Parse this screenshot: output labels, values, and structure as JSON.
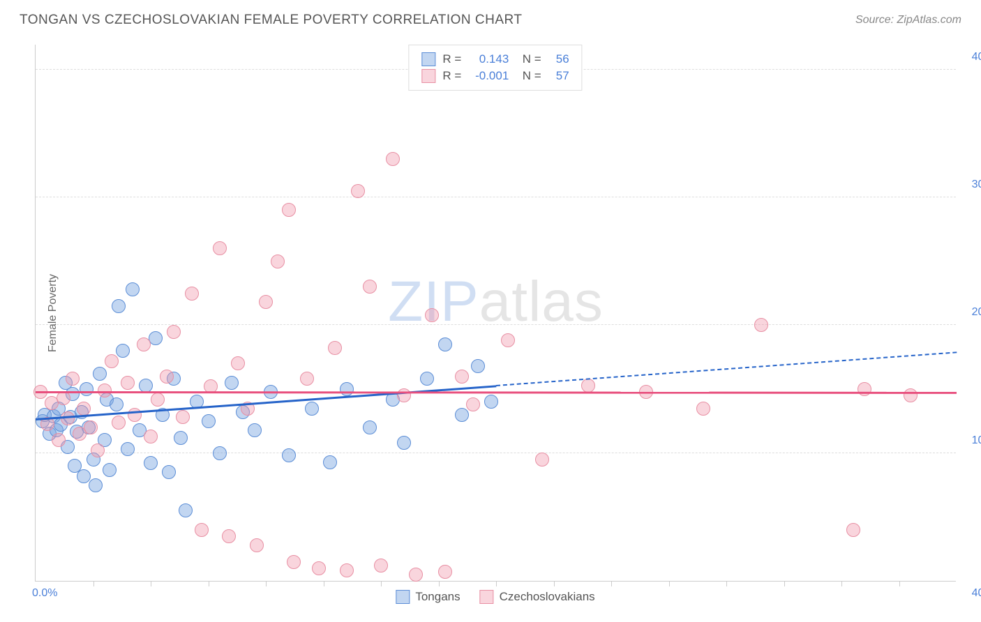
{
  "header": {
    "title": "TONGAN VS CZECHOSLOVAKIAN FEMALE POVERTY CORRELATION CHART",
    "source": "Source: ZipAtlas.com"
  },
  "chart": {
    "type": "scatter",
    "y_axis_label": "Female Poverty",
    "x_range": [
      0,
      40
    ],
    "y_range": [
      0,
      42
    ],
    "x_origin_label": "0.0%",
    "x_max_label": "40.0%",
    "y_ticks": [
      {
        "value": 10,
        "label": "10.0%"
      },
      {
        "value": 20,
        "label": "20.0%"
      },
      {
        "value": 30,
        "label": "30.0%"
      },
      {
        "value": 40,
        "label": "40.0%"
      }
    ],
    "x_tick_positions": [
      2.5,
      5,
      7.5,
      10,
      12.5,
      15,
      17.5,
      20,
      22.5,
      25,
      27.5,
      30,
      32.5,
      35,
      37.5
    ],
    "grid_color": "#dddddd",
    "background_color": "#ffffff",
    "axis_label_color": "#4a7fd8",
    "point_radius": 10,
    "series": [
      {
        "name": "Tongans",
        "fill": "rgba(120, 165, 225, 0.45)",
        "stroke": "#5b8dd6",
        "trend_color": "#2563c9",
        "trend_solid": {
          "x1": 0,
          "y1": 12.6,
          "x2": 20,
          "y2": 15.2
        },
        "trend_dash": {
          "x1": 20,
          "y1": 15.2,
          "x2": 40,
          "y2": 17.8
        },
        "points": [
          [
            0.3,
            12.5
          ],
          [
            0.4,
            13.0
          ],
          [
            0.6,
            11.5
          ],
          [
            0.8,
            12.9
          ],
          [
            0.9,
            11.8
          ],
          [
            1.0,
            13.5
          ],
          [
            1.1,
            12.2
          ],
          [
            1.3,
            15.5
          ],
          [
            1.4,
            10.5
          ],
          [
            1.5,
            12.8
          ],
          [
            1.6,
            14.6
          ],
          [
            1.7,
            9.0
          ],
          [
            1.8,
            11.7
          ],
          [
            2.0,
            13.2
          ],
          [
            2.1,
            8.2
          ],
          [
            2.2,
            15.0
          ],
          [
            2.3,
            12.0
          ],
          [
            2.5,
            9.5
          ],
          [
            2.6,
            7.5
          ],
          [
            2.8,
            16.2
          ],
          [
            3.0,
            11.0
          ],
          [
            3.1,
            14.2
          ],
          [
            3.2,
            8.7
          ],
          [
            3.5,
            13.8
          ],
          [
            3.6,
            21.5
          ],
          [
            3.8,
            18.0
          ],
          [
            4.0,
            10.3
          ],
          [
            4.2,
            22.8
          ],
          [
            4.5,
            11.8
          ],
          [
            4.8,
            15.3
          ],
          [
            5.0,
            9.2
          ],
          [
            5.2,
            19.0
          ],
          [
            5.5,
            13.0
          ],
          [
            5.8,
            8.5
          ],
          [
            6.0,
            15.8
          ],
          [
            6.3,
            11.2
          ],
          [
            6.5,
            5.5
          ],
          [
            7.0,
            14.0
          ],
          [
            7.5,
            12.5
          ],
          [
            8.0,
            10.0
          ],
          [
            8.5,
            15.5
          ],
          [
            9.0,
            13.2
          ],
          [
            9.5,
            11.8
          ],
          [
            10.2,
            14.8
          ],
          [
            11.0,
            9.8
          ],
          [
            12.0,
            13.5
          ],
          [
            12.8,
            9.3
          ],
          [
            13.5,
            15.0
          ],
          [
            14.5,
            12.0
          ],
          [
            15.5,
            14.2
          ],
          [
            16.0,
            10.8
          ],
          [
            17.0,
            15.8
          ],
          [
            17.8,
            18.5
          ],
          [
            18.5,
            13.0
          ],
          [
            19.2,
            16.8
          ],
          [
            19.8,
            14.0
          ]
        ]
      },
      {
        "name": "Czechoslovakians",
        "fill": "rgba(240, 150, 170, 0.40)",
        "stroke": "#e88fa3",
        "trend_color": "#e84f7d",
        "trend_solid": {
          "x1": 0,
          "y1": 14.7,
          "x2": 40,
          "y2": 14.65
        },
        "points": [
          [
            0.2,
            14.8
          ],
          [
            0.5,
            12.3
          ],
          [
            0.7,
            13.9
          ],
          [
            1.0,
            11.0
          ],
          [
            1.2,
            14.3
          ],
          [
            1.4,
            12.7
          ],
          [
            1.6,
            15.8
          ],
          [
            1.9,
            11.5
          ],
          [
            2.1,
            13.5
          ],
          [
            2.4,
            12.0
          ],
          [
            2.7,
            10.2
          ],
          [
            3.0,
            14.9
          ],
          [
            3.3,
            17.2
          ],
          [
            3.6,
            12.4
          ],
          [
            4.0,
            15.5
          ],
          [
            4.3,
            13.0
          ],
          [
            4.7,
            18.5
          ],
          [
            5.0,
            11.3
          ],
          [
            5.3,
            14.2
          ],
          [
            5.7,
            16.0
          ],
          [
            6.0,
            19.5
          ],
          [
            6.4,
            12.8
          ],
          [
            6.8,
            22.5
          ],
          [
            7.2,
            4.0
          ],
          [
            7.6,
            15.2
          ],
          [
            8.0,
            26.0
          ],
          [
            8.4,
            3.5
          ],
          [
            8.8,
            17.0
          ],
          [
            9.2,
            13.5
          ],
          [
            9.6,
            2.8
          ],
          [
            10.0,
            21.8
          ],
          [
            10.5,
            25.0
          ],
          [
            11.0,
            29.0
          ],
          [
            11.2,
            1.5
          ],
          [
            11.8,
            15.8
          ],
          [
            12.3,
            1.0
          ],
          [
            13.0,
            18.2
          ],
          [
            13.5,
            0.8
          ],
          [
            14.0,
            30.5
          ],
          [
            14.5,
            23.0
          ],
          [
            15.0,
            1.2
          ],
          [
            15.5,
            33.0
          ],
          [
            16.0,
            14.5
          ],
          [
            16.5,
            0.5
          ],
          [
            17.2,
            20.8
          ],
          [
            17.8,
            0.7
          ],
          [
            18.5,
            16.0
          ],
          [
            19.0,
            13.8
          ],
          [
            20.5,
            18.8
          ],
          [
            22.0,
            9.5
          ],
          [
            24.0,
            15.3
          ],
          [
            26.5,
            14.8
          ],
          [
            29.0,
            13.5
          ],
          [
            31.5,
            20.0
          ],
          [
            35.5,
            4.0
          ],
          [
            36.0,
            15.0
          ],
          [
            38.0,
            14.5
          ]
        ]
      }
    ],
    "stats_legend": [
      {
        "swatch_fill": "rgba(120, 165, 225, 0.45)",
        "swatch_stroke": "#5b8dd6",
        "r": "0.143",
        "n": "56"
      },
      {
        "swatch_fill": "rgba(240, 150, 170, 0.40)",
        "swatch_stroke": "#e88fa3",
        "r": "-0.001",
        "n": "57"
      }
    ],
    "bottom_legend": [
      {
        "swatch_fill": "rgba(120, 165, 225, 0.45)",
        "swatch_stroke": "#5b8dd6",
        "label": "Tongans"
      },
      {
        "swatch_fill": "rgba(240, 150, 170, 0.40)",
        "swatch_stroke": "#e88fa3",
        "label": "Czechoslovakians"
      }
    ],
    "watermark": {
      "part1": "ZIP",
      "part2": "atlas"
    }
  }
}
